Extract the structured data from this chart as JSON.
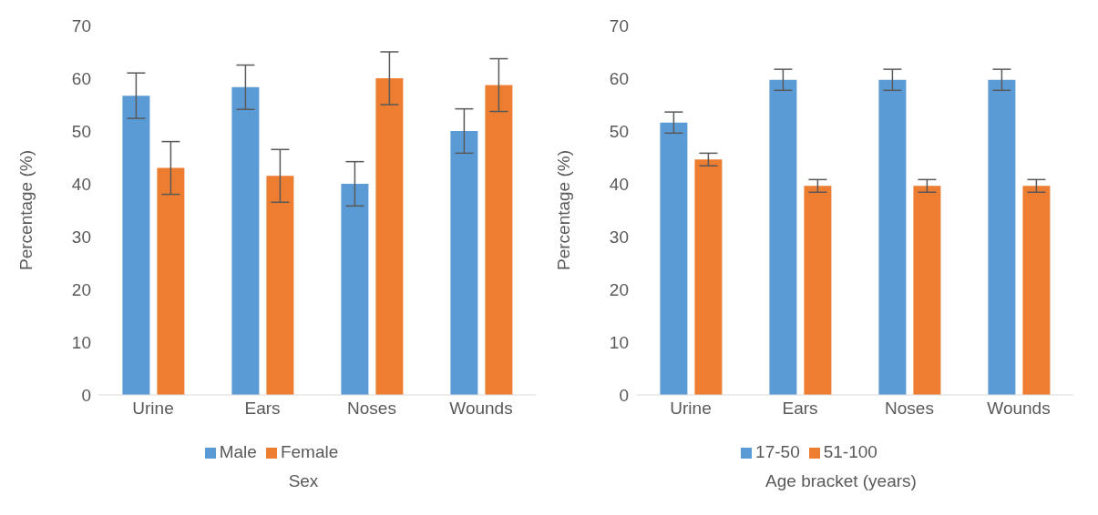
{
  "chart_data": [
    {
      "type": "bar",
      "xlabel": "Sex",
      "ylabel": "Percentage (%)",
      "categories": [
        "Urine",
        "Ears",
        "Noses",
        "Wounds"
      ],
      "ylim": [
        0,
        70
      ],
      "yticks": [
        0,
        10,
        20,
        30,
        40,
        50,
        60,
        70
      ],
      "grid": false,
      "legend": "bottom",
      "series": [
        {
          "name": "Male",
          "color": "#5b9bd5",
          "values": [
            56.7,
            58.3,
            40,
            50
          ],
          "errors": [
            4.3,
            4.2,
            4.2,
            4.2
          ]
        },
        {
          "name": "Female",
          "color": "#ed7d31",
          "values": [
            43,
            41.5,
            60,
            58.7
          ],
          "errors": [
            5,
            5,
            5,
            5
          ]
        }
      ]
    },
    {
      "type": "bar",
      "xlabel": "Age bracket (years)",
      "ylabel": "Percentage (%)",
      "categories": [
        "Urine",
        "Ears",
        "Noses",
        "Wounds"
      ],
      "ylim": [
        0,
        70
      ],
      "yticks": [
        0,
        10,
        20,
        30,
        40,
        50,
        60,
        70
      ],
      "grid": false,
      "legend": "bottom",
      "series": [
        {
          "name": "17-50",
          "color": "#5b9bd5",
          "values": [
            51.6,
            59.7,
            59.7,
            59.7
          ],
          "errors": [
            2,
            2,
            2,
            2
          ]
        },
        {
          "name": "51-100",
          "color": "#ed7d31",
          "values": [
            44.6,
            39.6,
            39.6,
            39.6
          ],
          "errors": [
            1.2,
            1.2,
            1.2,
            1.2
          ]
        }
      ]
    }
  ]
}
